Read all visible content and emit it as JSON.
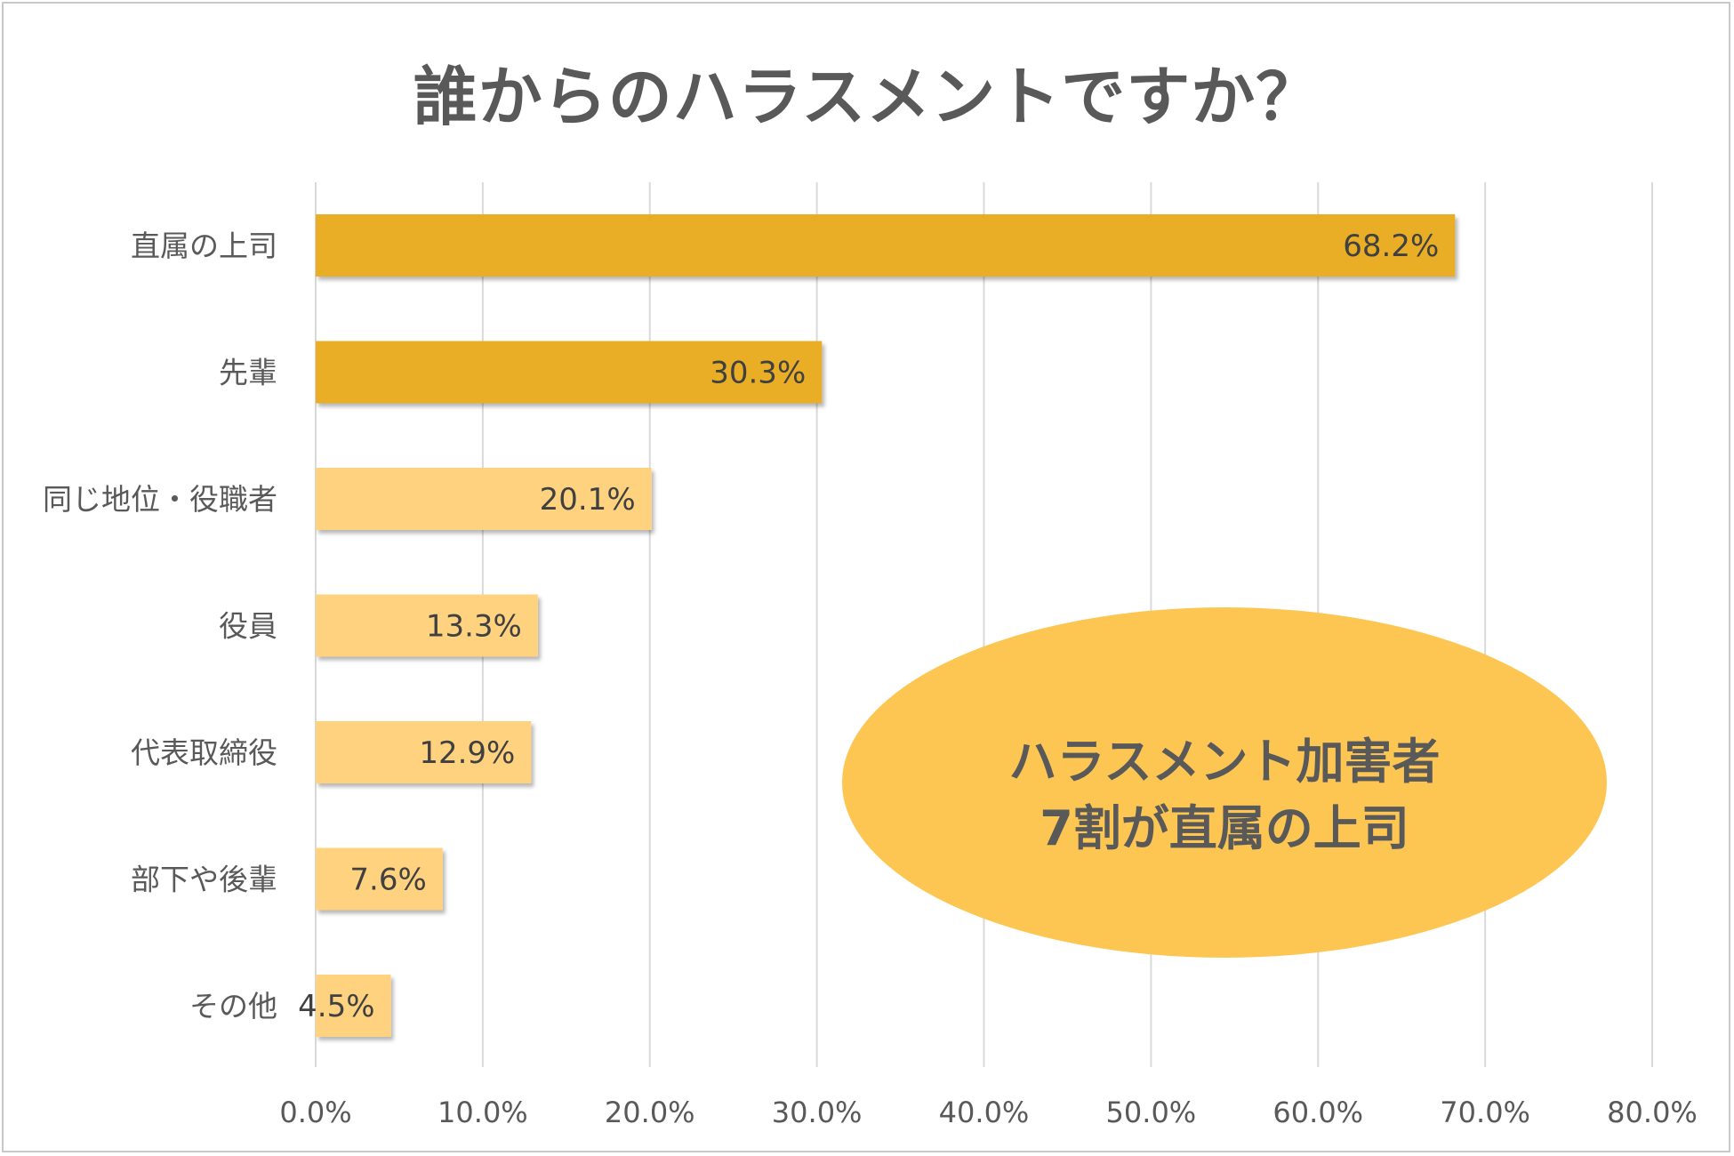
{
  "title": "誰からのハラスメントですか？",
  "callout": {
    "line1": "ハラスメント加害者",
    "line2": "7割が直属の上司"
  },
  "colors": {
    "highlight": "#E9AE27",
    "normal": "#FFD280",
    "callout": "#FDC653",
    "grid": "#d9d9d9",
    "text": "#595959"
  },
  "chart_data": {
    "type": "bar",
    "orientation": "horizontal",
    "title": "誰からのハラスメントですか？",
    "categories": [
      "直属の上司",
      "先輩",
      "同じ地位・役職者",
      "役員",
      "代表取締役",
      "部下や後輩",
      "その他"
    ],
    "values": [
      68.2,
      30.3,
      20.1,
      13.3,
      12.9,
      7.6,
      4.5
    ],
    "value_labels": [
      "68.2%",
      "30.3%",
      "20.1%",
      "13.3%",
      "12.9%",
      "7.6%",
      "4.5%"
    ],
    "highlighted": [
      true,
      true,
      false,
      false,
      false,
      false,
      false
    ],
    "xlim": [
      0,
      80
    ],
    "xticks": [
      0,
      10,
      20,
      30,
      40,
      50,
      60,
      70,
      80
    ],
    "xtick_labels": [
      "0.0%",
      "10.0%",
      "20.0%",
      "30.0%",
      "40.0%",
      "50.0%",
      "60.0%",
      "70.0%",
      "80.0%"
    ],
    "grid": true,
    "xlabel": "",
    "ylabel": ""
  }
}
